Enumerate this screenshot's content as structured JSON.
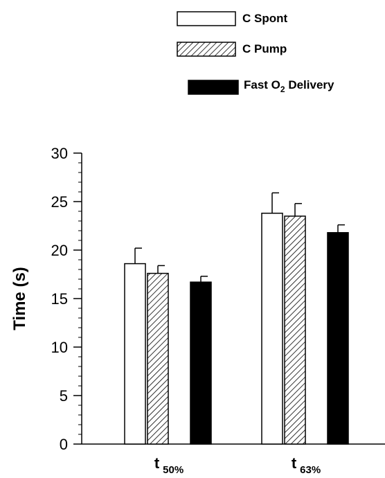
{
  "chart_data": {
    "type": "bar",
    "ylabel": "Time (s)",
    "xlabel": "",
    "ylim": [
      0,
      30
    ],
    "yticks": [
      "0",
      "5",
      "10",
      "15",
      "20",
      "25",
      "30"
    ],
    "grid": false,
    "legend_position": "top-right",
    "categories": [
      {
        "main": "t",
        "sub": "50%"
      },
      {
        "main": "t",
        "sub": "63%"
      }
    ],
    "series": [
      {
        "name": "C Spont",
        "name_main": "C Spont",
        "name_sub": "",
        "name_tail": "",
        "fill": "white",
        "values": [
          18.6,
          23.8
        ],
        "errors": [
          1.6,
          2.1
        ]
      },
      {
        "name": "C Pump",
        "name_main": "C Pump",
        "name_sub": "",
        "name_tail": "",
        "fill": "hatched",
        "values": [
          17.6,
          23.5
        ],
        "errors": [
          0.8,
          1.3
        ]
      },
      {
        "name": "Fast O2 Delivery",
        "name_main": "Fast O",
        "name_sub": "2",
        "name_tail": " Delivery",
        "fill": "black",
        "values": [
          16.7,
          21.8
        ],
        "errors": [
          0.6,
          0.8
        ]
      }
    ]
  }
}
